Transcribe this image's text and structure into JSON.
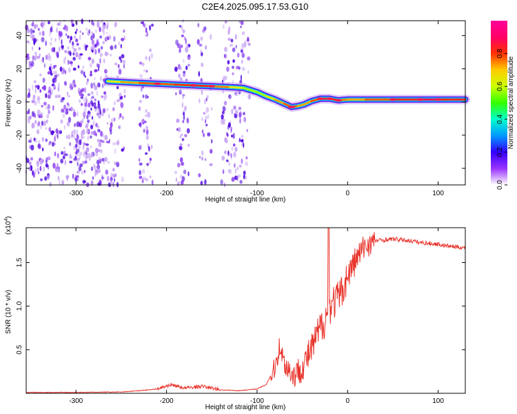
{
  "title": "C2E4.2025.095.17.53.G10",
  "chart_data": [
    {
      "type": "heatmap",
      "xlabel": "Height of straight line (km)",
      "ylabel": "Frequency (Hz)",
      "xlim": [
        -355,
        130
      ],
      "ylim": [
        -50,
        49
      ],
      "xticks": [
        -300,
        -200,
        -100,
        0,
        100
      ],
      "yticks": [
        -40,
        -20,
        0,
        20,
        40
      ],
      "colorbar": {
        "label": "Normalized spectral amplitude",
        "ticks": [
          0.0,
          0.2,
          0.4,
          0.6,
          0.8
        ],
        "range": [
          0,
          1
        ],
        "colormap": [
          "#ffffff",
          "#9933ff",
          "#3300ff",
          "#0099ff",
          "#00ffcc",
          "#33ff00",
          "#ccff00",
          "#ffcc00",
          "#ff3300",
          "#ff0066",
          "#ff0099"
        ]
      },
      "signal_track": {
        "x": [
          -265,
          -250,
          -230,
          -210,
          -190,
          -170,
          -150,
          -130,
          -115,
          -100,
          -90,
          -80,
          -70,
          -62,
          -55,
          -48,
          -40,
          -30,
          -20,
          -10,
          0,
          20,
          50,
          80,
          100,
          130
        ],
        "y": [
          12.5,
          12,
          11.5,
          11,
          10.5,
          10,
          9.5,
          9,
          8.5,
          6,
          3.5,
          1.5,
          -1,
          -3,
          -2.5,
          -1.5,
          0.5,
          2,
          2,
          1,
          1.5,
          1.5,
          1.5,
          1.5,
          1.5,
          1.5
        ],
        "amplitude": [
          0.6,
          0.7,
          0.75,
          0.8,
          0.75,
          0.85,
          0.8,
          0.7,
          0.6,
          0.55,
          0.6,
          0.7,
          0.75,
          0.8,
          0.75,
          0.7,
          0.75,
          0.8,
          0.85,
          0.8,
          0.7,
          0.75,
          0.8,
          0.85,
          0.9,
          0.75
        ]
      },
      "noise_region_x": [
        -355,
        -108
      ]
    },
    {
      "type": "line",
      "xlabel": "Height of straight line (km)",
      "ylabel": "SNR (10 * v/v)",
      "yscale_label": "(x10",
      "yscale_exp": "4",
      "xlim": [
        -355,
        130
      ],
      "ylim": [
        0,
        1.9
      ],
      "xticks": [
        -300,
        -200,
        -100,
        0,
        100
      ],
      "yticks": [
        0.5,
        1.0,
        1.5
      ],
      "ytick_labels": [
        "0.5",
        "1.0",
        "1.5"
      ],
      "series": [
        {
          "name": "SNR",
          "color": "#e8322a",
          "x": [
            -355,
            -300,
            -250,
            -230,
            -210,
            -195,
            -180,
            -160,
            -140,
            -120,
            -100,
            -90,
            -80,
            -75,
            -70,
            -60,
            -50,
            -40,
            -30,
            -25,
            -20,
            -15,
            -10,
            -5,
            0,
            10,
            20,
            30,
            40,
            50,
            60,
            70,
            80,
            90,
            100,
            110,
            120,
            130
          ],
          "y": [
            0.01,
            0.01,
            0.015,
            0.03,
            0.05,
            0.1,
            0.06,
            0.08,
            0.04,
            0.03,
            0.05,
            0.1,
            0.3,
            0.55,
            0.35,
            0.2,
            0.3,
            0.5,
            0.75,
            0.85,
            1.0,
            1.05,
            1.1,
            1.2,
            1.35,
            1.55,
            1.7,
            1.75,
            1.76,
            1.77,
            1.76,
            1.75,
            1.73,
            1.72,
            1.71,
            1.69,
            1.68,
            1.67
          ]
        }
      ]
    }
  ]
}
